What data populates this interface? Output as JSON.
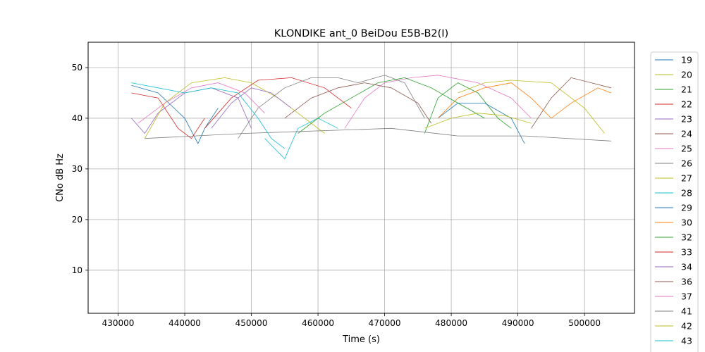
{
  "chart_data": {
    "type": "line",
    "title": "KLONDIKE ant_0 BeiDou E5B-B2(I)",
    "xlabel": "Time (s)",
    "ylabel": "CNo dB Hz",
    "xlim": [
      425500,
      507500
    ],
    "ylim": [
      1.5,
      55
    ],
    "grid": true,
    "legend_position": "right-outside",
    "x_ticks": [
      430000,
      440000,
      450000,
      460000,
      470000,
      480000,
      490000,
      500000
    ],
    "x_tick_labels": [
      "430000",
      "440000",
      "450000",
      "460000",
      "470000",
      "480000",
      "490000",
      "500000"
    ],
    "y_ticks": [
      10,
      20,
      30,
      40,
      50
    ],
    "y_tick_labels": [
      "10",
      "20",
      "30",
      "40",
      "50"
    ],
    "series": [
      {
        "name": "19",
        "color": "#1f77b4",
        "points": [
          [
            432000,
            46.5
          ],
          [
            436000,
            45
          ],
          [
            440000,
            40
          ],
          [
            442000,
            35
          ],
          [
            443000,
            38
          ],
          [
            445000,
            42
          ]
        ]
      },
      {
        "name": "20",
        "color": "#bcbd22",
        "points": [
          [
            481000,
            45
          ],
          [
            485000,
            47
          ],
          [
            489000,
            47.5
          ],
          [
            495000,
            47
          ],
          [
            500000,
            42
          ],
          [
            503000,
            37
          ]
        ]
      },
      {
        "name": "21",
        "color": "#2ca02c",
        "points": [
          [
            476000,
            37
          ],
          [
            478000,
            44
          ],
          [
            481000,
            47
          ],
          [
            484000,
            45
          ],
          [
            487000,
            40
          ],
          [
            489000,
            38
          ]
        ]
      },
      {
        "name": "22",
        "color": "#d62728",
        "points": [
          [
            443000,
            38
          ],
          [
            447000,
            44
          ],
          [
            451000,
            47.5
          ],
          [
            456000,
            48
          ],
          [
            461000,
            46
          ],
          [
            465000,
            42
          ]
        ]
      },
      {
        "name": "23",
        "color": "#9467bd",
        "points": [
          [
            432000,
            40
          ],
          [
            434000,
            37
          ],
          [
            436000,
            41
          ],
          [
            440000,
            45
          ],
          [
            444000,
            46
          ],
          [
            448000,
            44
          ],
          [
            450000,
            38
          ]
        ]
      },
      {
        "name": "24",
        "color": "#8c564b",
        "points": [
          [
            492000,
            38
          ],
          [
            495000,
            44
          ],
          [
            498000,
            48
          ],
          [
            501000,
            47
          ],
          [
            504000,
            46
          ]
        ]
      },
      {
        "name": "25",
        "color": "#e377c2",
        "points": [
          [
            464000,
            38
          ],
          [
            467000,
            44
          ],
          [
            470000,
            47
          ],
          [
            474000,
            48
          ],
          [
            478000,
            48.5
          ],
          [
            484000,
            47
          ],
          [
            489000,
            44
          ],
          [
            492000,
            40
          ]
        ]
      },
      {
        "name": "26",
        "color": "#7f7f7f",
        "points": [
          [
            448000,
            36
          ],
          [
            451000,
            42
          ],
          [
            455000,
            46
          ],
          [
            459000,
            48
          ],
          [
            463000,
            48
          ],
          [
            466000,
            47
          ],
          [
            470000,
            48.5
          ],
          [
            473000,
            47
          ],
          [
            476000,
            40
          ]
        ]
      },
      {
        "name": "27",
        "color": "#bcbd22",
        "points": [
          [
            434000,
            36
          ],
          [
            437000,
            43
          ],
          [
            441000,
            47
          ],
          [
            446000,
            48
          ],
          [
            450000,
            47
          ],
          [
            454000,
            44
          ],
          [
            458000,
            40
          ],
          [
            461000,
            37
          ]
        ]
      },
      {
        "name": "28",
        "color": "#17becf",
        "points": [
          [
            452000,
            36
          ],
          [
            455000,
            32
          ],
          [
            457000,
            38
          ],
          [
            460000,
            40
          ],
          [
            463000,
            38
          ]
        ]
      },
      {
        "name": "29",
        "color": "#1f77b4",
        "points": [
          [
            478000,
            40
          ],
          [
            481000,
            43
          ],
          [
            485000,
            43
          ],
          [
            489000,
            40
          ],
          [
            491000,
            35
          ]
        ]
      },
      {
        "name": "30",
        "color": "#ff7f0e",
        "points": [
          [
            478000,
            40
          ],
          [
            481000,
            44
          ],
          [
            485000,
            46
          ],
          [
            489000,
            47
          ],
          [
            492000,
            44
          ],
          [
            495000,
            40
          ],
          [
            498000,
            43
          ],
          [
            502000,
            46
          ],
          [
            504000,
            45
          ]
        ]
      },
      {
        "name": "32",
        "color": "#2ca02c",
        "points": [
          [
            457000,
            37
          ],
          [
            461000,
            41
          ],
          [
            465000,
            44
          ],
          [
            469000,
            47
          ],
          [
            473000,
            48
          ],
          [
            477000,
            46
          ],
          [
            481000,
            43
          ],
          [
            485000,
            40
          ]
        ]
      },
      {
        "name": "33",
        "color": "#d62728",
        "points": [
          [
            432000,
            45
          ],
          [
            436000,
            44
          ],
          [
            439000,
            38
          ],
          [
            441000,
            36
          ],
          [
            443000,
            40
          ]
        ]
      },
      {
        "name": "34",
        "color": "#9467bd",
        "points": [
          [
            444000,
            38
          ],
          [
            447000,
            43
          ],
          [
            450000,
            46
          ],
          [
            453000,
            45
          ],
          [
            456000,
            42
          ]
        ]
      },
      {
        "name": "36",
        "color": "#8c564b",
        "points": [
          [
            455000,
            40
          ],
          [
            459000,
            44
          ],
          [
            463000,
            46
          ],
          [
            467000,
            47
          ],
          [
            471000,
            46
          ],
          [
            475000,
            43
          ],
          [
            477000,
            39
          ]
        ]
      },
      {
        "name": "37",
        "color": "#e377c2",
        "points": [
          [
            433000,
            39
          ],
          [
            437000,
            43
          ],
          [
            441000,
            46
          ],
          [
            445000,
            47
          ],
          [
            449000,
            45
          ],
          [
            452000,
            41
          ]
        ]
      },
      {
        "name": "41",
        "color": "#7f7f7f",
        "points": [
          [
            434000,
            36
          ],
          [
            449000,
            37
          ],
          [
            471000,
            38
          ],
          [
            481000,
            36.5
          ],
          [
            491000,
            36.5
          ],
          [
            504000,
            35.5
          ]
        ]
      },
      {
        "name": "42",
        "color": "#bcbd22",
        "points": [
          [
            476000,
            38
          ],
          [
            480000,
            40
          ],
          [
            484000,
            41
          ],
          [
            488000,
            40.5
          ],
          [
            492000,
            39
          ]
        ]
      },
      {
        "name": "43",
        "color": "#17becf",
        "points": [
          [
            432000,
            47
          ],
          [
            436000,
            46
          ],
          [
            440000,
            45
          ],
          [
            444000,
            46
          ],
          [
            448000,
            45
          ],
          [
            451000,
            40
          ],
          [
            453000,
            36
          ],
          [
            455000,
            34
          ]
        ]
      }
    ]
  }
}
